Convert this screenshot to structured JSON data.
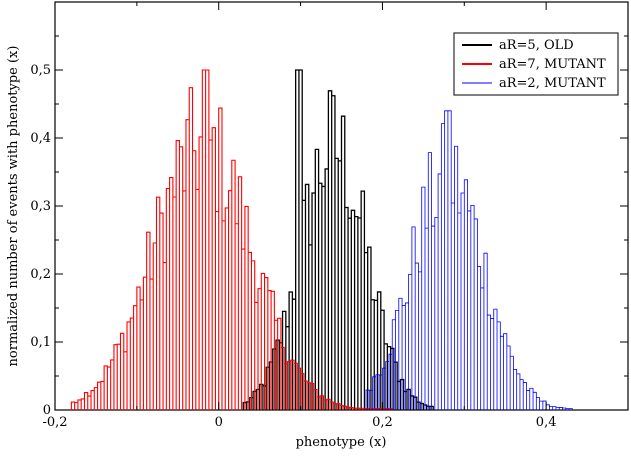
{
  "chart_data": {
    "type": "bar",
    "subtype": "histogram-outline",
    "xlabel": "phenotype (x)",
    "ylabel": "normalized number of events with phenotype (x)",
    "xlim": [
      -0.2,
      0.5
    ],
    "ylim": [
      0,
      0.6
    ],
    "x_ticks": [
      -0.2,
      0,
      0.2,
      0.4
    ],
    "x_tick_labels": [
      "-0,2",
      "0",
      "0,2",
      "0,4"
    ],
    "y_ticks": [
      0,
      0.1,
      0.2,
      0.3,
      0.4,
      0.5
    ],
    "y_tick_labels": [
      "0",
      "0,1",
      "0,2",
      "0,3",
      "0,4",
      "0,5"
    ],
    "grid": false,
    "legend_position": "top-right",
    "bin_width": 0.004,
    "series": [
      {
        "name": "aR=5, OLD",
        "color": "#000000",
        "mean": 0.14,
        "sd": 0.04,
        "peak": 0.5,
        "peak_x": 0.1,
        "x_range": [
          0.03,
          0.26
        ]
      },
      {
        "name": "aR=7, MUTANT",
        "color": "#ff0000",
        "mean": -0.02,
        "sd": 0.06,
        "peak": 0.5,
        "peak_x": -0.015,
        "x_range": [
          -0.18,
          0.21
        ]
      },
      {
        "name": "aR=2, MUTANT",
        "color": "#0000ff",
        "mean": 0.28,
        "sd": 0.045,
        "peak": 0.44,
        "peak_x": 0.28,
        "x_range": [
          0.18,
          0.43
        ]
      }
    ]
  }
}
